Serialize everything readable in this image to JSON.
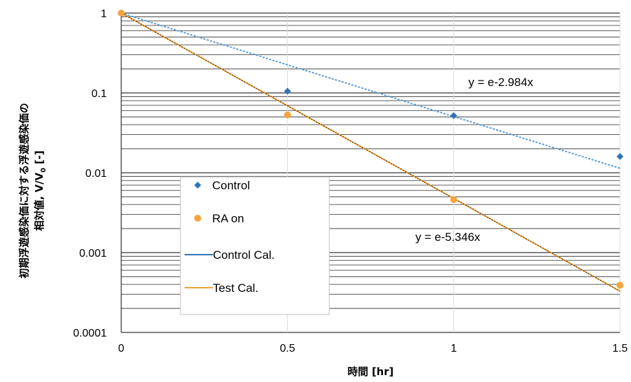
{
  "chart_data": {
    "type": "scatter",
    "title": "",
    "xlabel": "時間 [hr]",
    "ylabel_line1": "初期浮遊感染価に対する浮遊感染価の",
    "ylabel_line2": "相対値, V/V0 [-]",
    "ylabel_prefix": "相対値, V/V",
    "ylabel_sub": "0",
    "ylabel_suffix": " [-]",
    "xlim": [
      0,
      1.5
    ],
    "ylim": [
      0.0001,
      1
    ],
    "y_scale": "log",
    "grid": true,
    "x_ticks": [
      0,
      0.5,
      1,
      1.5
    ],
    "x_tick_labels": [
      "0",
      "0.5",
      "1",
      "1.5"
    ],
    "y_ticks": [
      1,
      0.1,
      0.01,
      0.001,
      0.0001
    ],
    "y_tick_labels": [
      "1",
      "0.1",
      "0.01",
      "0.001",
      "0.0001"
    ],
    "legend_position": "lower-left",
    "series": [
      {
        "name": "Control",
        "kind": "points",
        "marker": "diamond",
        "color": "#2E75B6",
        "x": [
          0,
          0.5,
          1,
          1.5
        ],
        "y": [
          1,
          0.105,
          0.052,
          0.016
        ]
      },
      {
        "name": "RA on",
        "kind": "points",
        "marker": "circle",
        "color": "#F7A33B",
        "x": [
          0,
          0.5,
          1,
          1.5
        ],
        "y": [
          1,
          0.053,
          0.0046,
          0.00039
        ]
      },
      {
        "name": "Control Cal.",
        "kind": "fit",
        "k": -2.984,
        "color": "#5B9BD5",
        "dash": "3,2"
      },
      {
        "name": "Test Cal.",
        "kind": "fit",
        "k": -5.346,
        "color": "#F7A33B"
      }
    ],
    "legend_swatch_colors": {
      "Control Cal.": "#2E75B6",
      "Test Cal.": "#F0A132"
    },
    "annotations": [
      {
        "text": "y = e-2.984x",
        "x": 1.05,
        "y": 0.12
      },
      {
        "text": "y = e-5.346x",
        "x": 0.89,
        "y": 0.0025
      }
    ]
  }
}
